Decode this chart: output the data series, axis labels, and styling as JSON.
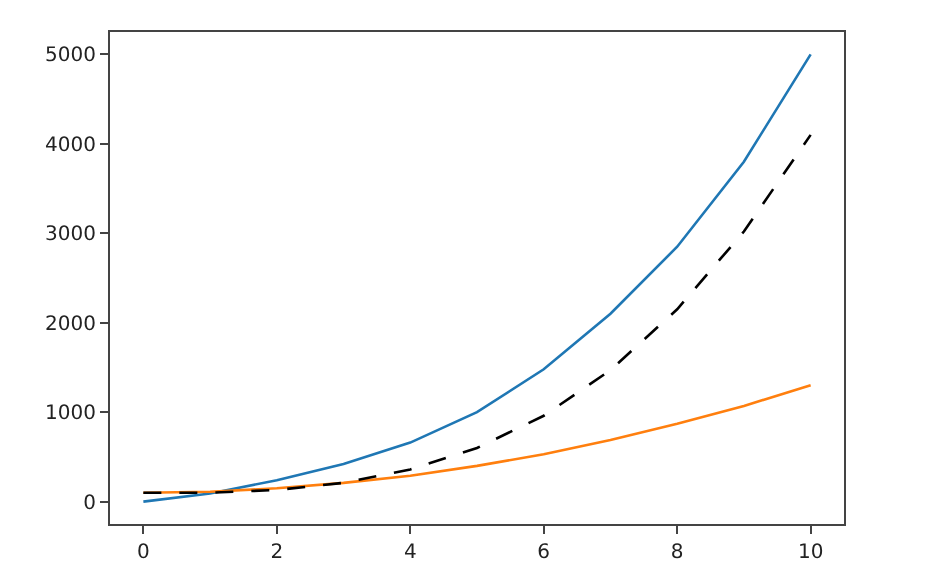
{
  "chart_data": {
    "type": "line",
    "x": [
      0,
      1,
      2,
      3,
      4,
      5,
      6,
      7,
      8,
      9,
      10
    ],
    "series": [
      {
        "color": "#1f77b4",
        "values": [
          0,
          90,
          240,
          420,
          660,
          1000,
          1480,
          2100,
          2850,
          3800,
          5000
        ]
      },
      {
        "color": "#ff7f0e",
        "values": [
          100,
          110,
          150,
          210,
          290,
          400,
          530,
          690,
          870,
          1070,
          1300
        ]
      },
      {
        "color": "#000000",
        "line_style": "dashed",
        "values": [
          100,
          100,
          130,
          210,
          360,
          600,
          960,
          1470,
          2150,
          3020,
          4100
        ]
      }
    ],
    "xlim": [
      -0.5,
      10.5
    ],
    "xticks": [
      0,
      2,
      4,
      6,
      8,
      10
    ],
    "ylim": [
      -250,
      5250
    ],
    "yticks": [
      0,
      1000,
      2000,
      3000,
      4000,
      5000
    ],
    "grid": false,
    "marker": "none"
  }
}
